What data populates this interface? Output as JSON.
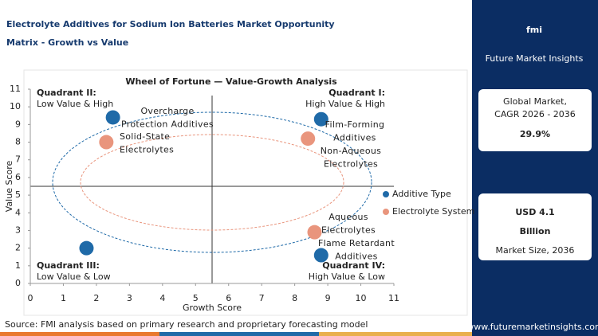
{
  "header": {
    "title": [
      "Electrolyte Additives for Sodium Ion Batteries Market Opportunity",
      "Matrix - Growth vs Value"
    ]
  },
  "chart_data": {
    "type": "scatter",
    "title": "Wheel of Fortune — Value-Growth Analysis",
    "xlabel": "Growth Score",
    "ylabel": "Value Score",
    "xlim": [
      0,
      11
    ],
    "ylim": [
      0,
      11
    ],
    "xticks": [
      0,
      1,
      2,
      3,
      4,
      5,
      6,
      7,
      8,
      9,
      10,
      11
    ],
    "yticks": [
      0,
      1,
      2,
      3,
      4,
      5,
      6,
      7,
      8,
      9,
      10,
      11
    ],
    "legend": "right",
    "quadrants": [
      {
        "title": "Quadrant II:",
        "subtitle": "Low Value & High"
      },
      {
        "title": "Quadrant I:",
        "subtitle": "High Value & High"
      },
      {
        "title": "Quadrant III:",
        "subtitle": "Low Value & Low"
      },
      {
        "title": "Quadrant IV:",
        "subtitle": "High Value & Low"
      }
    ],
    "series": [
      {
        "name": "Additive Type",
        "color": "#1f6aa8",
        "x": [
          2.5,
          8.8,
          1.7,
          8.8
        ],
        "values": [
          9.4,
          9.3,
          2.0,
          1.6
        ],
        "labels": [
          [
            "Overcharge",
            "Protection Additives"
          ],
          [
            "Film-Forming",
            "Additives"
          ],
          null,
          [
            "Flame Retardant",
            "Additives"
          ]
        ]
      },
      {
        "name": "Electrolyte System",
        "color": "#e9957d",
        "x": [
          2.3,
          8.4,
          8.6
        ],
        "values": [
          8.0,
          8.2,
          2.9
        ],
        "labels": [
          [
            "Solid-State",
            "Electrolytes"
          ],
          [
            "Non-Aqueous",
            "Electrolytes"
          ],
          [
            "Aqueous",
            "Electrolytes"
          ]
        ]
      }
    ]
  },
  "sidebar": {
    "brand": "fmi",
    "brand_name": "Future Market Insights",
    "cagr_label": [
      "Global Market,",
      "CAGR 2026 - 2036"
    ],
    "cagr_value": "29.9%",
    "size_value": [
      "USD 4.1",
      "Billion"
    ],
    "size_label": "Market Size, 2036",
    "url": "www.futuremarketinsights.com"
  },
  "footer": {
    "source": "Source: FMI analysis based on primary research and proprietary forecasting model"
  }
}
